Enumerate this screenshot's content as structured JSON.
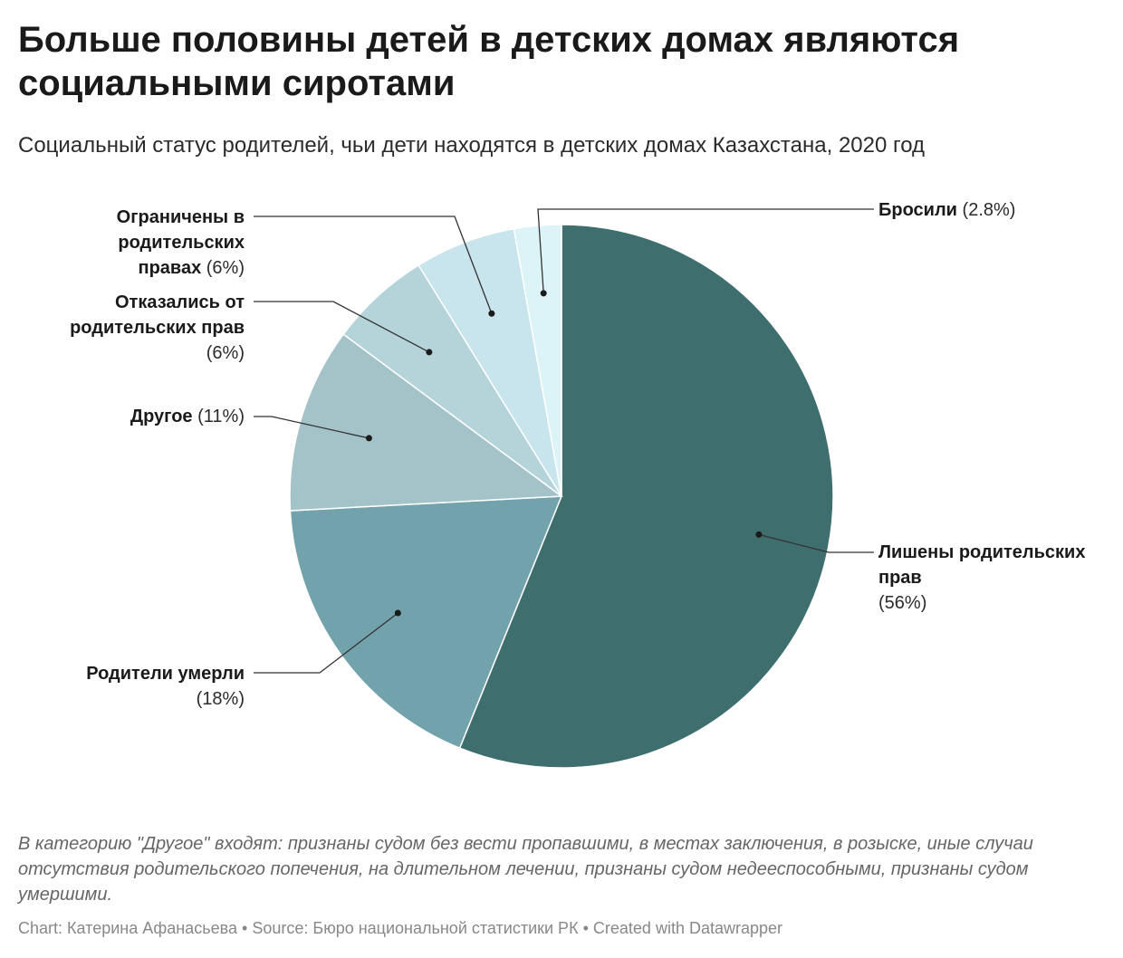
{
  "title": "Больше половины детей в детских домах являются социальными сиротами",
  "subtitle": "Социальный статус родителей, чьи дети находятся в детских домах Казахстана, 2020 год",
  "note": "В категорию \"Другое\" входят: признаны судом без вести пропавшими, в местах заключения, в розыске, иные случаи отсутствия родительского попечения, на длительном лечении, признаны судом недееспособными, признаны судом умершими.",
  "footer": {
    "chart_label": "Chart:",
    "chart_author": "Катерина Афанасьева",
    "source_label": "Source:",
    "source": "Бюро национальной статистики РК",
    "created": "Created with Datawrapper",
    "sep": "•"
  },
  "chart_data": {
    "type": "pie",
    "slices": [
      {
        "label": "Лишены родительских прав",
        "value": 56,
        "value_label": "(56%)",
        "color": "#3e6e6e"
      },
      {
        "label": "Родители умерли",
        "value": 18,
        "value_label": "(18%)",
        "color": "#72a3ad"
      },
      {
        "label": "Другое",
        "value": 11,
        "value_label": "(11%)",
        "color": "#a3c3c9"
      },
      {
        "label": "Отказались от родительских прав",
        "value": 6,
        "value_label": "(6%)",
        "color": "#b5d4da"
      },
      {
        "label": "Ограничены в родительских правах",
        "value": 6,
        "value_label": "(6%)",
        "color": "#c8e4ec"
      },
      {
        "label": "Бросили",
        "value": 2.8,
        "value_label": "(2.8%)",
        "color": "#dcf4f8"
      }
    ]
  }
}
